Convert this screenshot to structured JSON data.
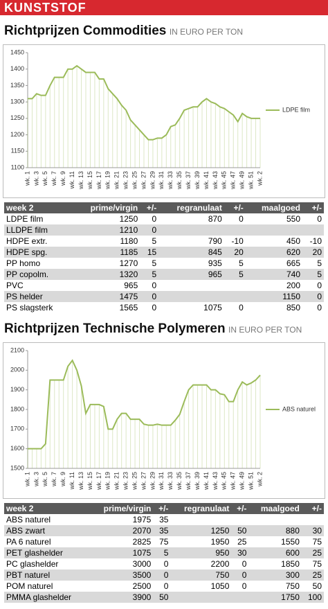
{
  "header": {
    "title": "KUNSTSTOF"
  },
  "sections": [
    {
      "title": "Richtprijzen Commodities",
      "unit": "IN EURO PER TON",
      "chart": {
        "type": "line",
        "categories": [
          "wk. 1",
          null,
          "wk. 3",
          null,
          "wk. 5",
          null,
          "wk. 7",
          null,
          "wk. 9",
          null,
          "wk. 11",
          null,
          "wk. 13",
          null,
          "wk. 15",
          null,
          "wk. 17",
          null,
          "wk. 19",
          null,
          "wk. 21",
          null,
          "wk. 23",
          null,
          "wk. 25",
          null,
          "wk. 27",
          null,
          "wk. 29",
          null,
          "wk. 31",
          null,
          "wk. 33",
          null,
          "wk. 35",
          null,
          "wk. 37",
          null,
          "wk. 39",
          null,
          "wk. 41",
          null,
          "wk. 43",
          null,
          "wk. 45",
          null,
          "wk. 47",
          null,
          "wk. 49",
          null,
          "wk. 51",
          null,
          "wk. 2"
        ],
        "series": [
          {
            "name": "LDPE film",
            "color": "#9bbb59",
            "values": [
              1310,
              1310,
              1325,
              1320,
              1320,
              1350,
              1375,
              1375,
              1375,
              1400,
              1400,
              1410,
              1400,
              1390,
              1390,
              1390,
              1370,
              1370,
              1340,
              1325,
              1310,
              1290,
              1275,
              1245,
              1230,
              1215,
              1200,
              1185,
              1185,
              1190,
              1190,
              1200,
              1225,
              1230,
              1250,
              1275,
              1280,
              1285,
              1285,
              1300,
              1310,
              1300,
              1295,
              1285,
              1280,
              1270,
              1260,
              1240,
              1265,
              1255,
              1250,
              1250,
              1250
            ]
          }
        ],
        "ylim": [
          1100,
          1450
        ],
        "yticks": [
          1100,
          1150,
          1200,
          1250,
          1300,
          1350,
          1400,
          1450
        ]
      },
      "table": {
        "header": [
          "week 2",
          "prime/virgin",
          "+/-",
          "regranulaat",
          "+/-",
          "maalgoed",
          "+/-"
        ],
        "rows": [
          [
            "LDPE film",
            1250,
            0,
            870,
            0,
            550,
            0
          ],
          [
            "LLDPE film",
            1210,
            0,
            null,
            null,
            null,
            null
          ],
          [
            "HDPE extr.",
            1180,
            5,
            790,
            -10,
            450,
            -10
          ],
          [
            "HDPE spg.",
            1185,
            15,
            845,
            20,
            620,
            20
          ],
          [
            "PP homo",
            1270,
            5,
            935,
            5,
            665,
            5
          ],
          [
            "PP copolm.",
            1320,
            5,
            965,
            5,
            740,
            5
          ],
          [
            "PVC",
            965,
            0,
            null,
            null,
            200,
            0
          ],
          [
            "PS helder",
            1475,
            0,
            null,
            null,
            1150,
            0
          ],
          [
            "PS slagsterk",
            1565,
            0,
            1075,
            0,
            850,
            0
          ]
        ]
      }
    },
    {
      "title": "Richtprijzen Technische Polymeren",
      "unit": "IN EURO PER TON",
      "chart": {
        "type": "line",
        "categories": [
          "wk. 1",
          null,
          "wk. 3",
          null,
          "wk. 5",
          null,
          "wk. 7",
          null,
          "wk. 9",
          null,
          "wk. 11",
          null,
          "wk. 13",
          null,
          "wk. 15",
          null,
          "wk. 17",
          null,
          "wk. 19",
          null,
          "wk. 21",
          null,
          "wk. 23",
          null,
          "wk. 25",
          null,
          "wk. 27",
          null,
          "wk. 29",
          null,
          "wk. 31",
          null,
          "wk. 33",
          null,
          "wk. 35",
          null,
          "wk. 37",
          null,
          "wk. 39",
          null,
          "wk. 41",
          null,
          "wk. 43",
          null,
          "wk. 45",
          null,
          "wk. 47",
          null,
          "wk. 49",
          null,
          "wk. 51",
          null,
          "wk. 2"
        ],
        "series": [
          {
            "name": "ABS naturel",
            "color": "#9bbb59",
            "values": [
              1600,
              1600,
              1600,
              1600,
              1625,
              1950,
              1950,
              1950,
              1950,
              2020,
              2050,
              2000,
              1920,
              1780,
              1825,
              1825,
              1825,
              1815,
              1700,
              1700,
              1750,
              1780,
              1780,
              1750,
              1750,
              1750,
              1725,
              1720,
              1720,
              1725,
              1720,
              1720,
              1720,
              1745,
              1775,
              1840,
              1900,
              1925,
              1925,
              1925,
              1925,
              1900,
              1900,
              1880,
              1875,
              1840,
              1840,
              1900,
              1940,
              1925,
              1935,
              1950,
              1975
            ]
          }
        ],
        "ylim": [
          1500,
          2100
        ],
        "yticks": [
          1500,
          1600,
          1700,
          1800,
          1900,
          2000,
          2100
        ]
      },
      "table": {
        "header": [
          "week 2",
          "prime/virgin",
          "+/-",
          "regranulaat",
          "+/-",
          "maalgoed",
          "+/-"
        ],
        "rows": [
          [
            "ABS naturel",
            1975,
            35,
            null,
            null,
            null,
            null
          ],
          [
            "ABS zwart",
            2070,
            35,
            1250,
            50,
            880,
            30
          ],
          [
            "PA 6 naturel",
            2825,
            75,
            1950,
            25,
            1550,
            75
          ],
          [
            "PET glashelder",
            1075,
            5,
            950,
            30,
            600,
            25
          ],
          [
            "PC glashelder",
            3000,
            0,
            2200,
            0,
            1850,
            75
          ],
          [
            "PBT naturel",
            3500,
            0,
            750,
            0,
            300,
            25
          ],
          [
            "POM naturel",
            2500,
            0,
            1050,
            0,
            750,
            50
          ],
          [
            "PMMA glashelder",
            3900,
            50,
            null,
            null,
            1750,
            100
          ]
        ]
      }
    }
  ]
}
